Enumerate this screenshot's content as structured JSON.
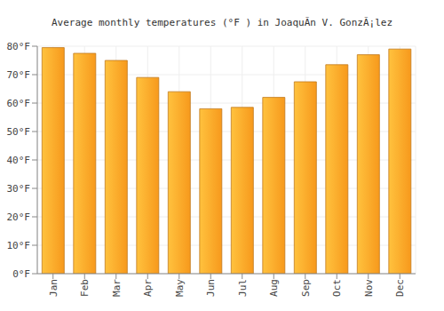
{
  "chart_data": {
    "type": "bar",
    "title": "Average monthly temperatures (°F ) in JoaquÃ­n V. GonzÃ¡lez",
    "categories": [
      "Jan",
      "Feb",
      "Mar",
      "Apr",
      "May",
      "Jun",
      "Jul",
      "Aug",
      "Sep",
      "Oct",
      "Nov",
      "Dec"
    ],
    "values": [
      79.5,
      77.5,
      75,
      69,
      64,
      58,
      58.5,
      62,
      67.5,
      73.5,
      77,
      79
    ],
    "color": "#f7991c",
    "ylim": [
      0,
      80
    ],
    "yticks": [
      {
        "value": 0,
        "label": "0°F"
      },
      {
        "value": 10,
        "label": "10°F"
      },
      {
        "value": 20,
        "label": "20°F"
      },
      {
        "value": 30,
        "label": "30°F"
      },
      {
        "value": 40,
        "label": "40°F"
      },
      {
        "value": 50,
        "label": "50°F"
      },
      {
        "value": 60,
        "label": "60°F"
      },
      {
        "value": 70,
        "label": "70°F"
      },
      {
        "value": 80,
        "label": "80°F"
      }
    ],
    "grid": true
  }
}
